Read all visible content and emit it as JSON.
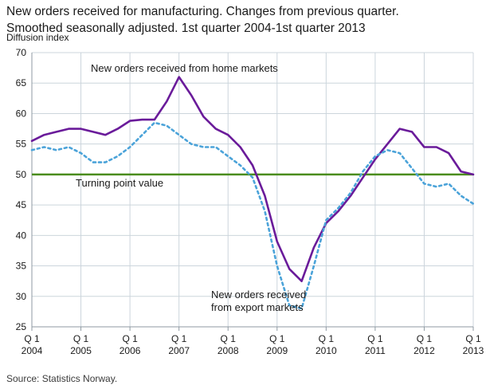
{
  "title": {
    "line1": "New orders received for manufacturing. Changes from previous quarter.",
    "line2": "Smoothed seasonally adjusted. 1st quarter 2004-1st quarter 2013"
  },
  "axis_unit_label": "Diffusion index",
  "source": "Source: Statistics Norway.",
  "annotations": {
    "home_markets": "New orders received from home markets",
    "turning_point": "Turning point value",
    "export_markets_line1": "New orders received",
    "export_markets_line2": "from export markets"
  },
  "colors": {
    "home_series": "#6a1b9a",
    "export_series": "#4ba3d9",
    "turning_line": "#4a8c1c",
    "grid": "#ccd5dc",
    "axis": "#8f9aa3",
    "text": "#1a1a1a"
  },
  "chart_data": {
    "type": "line",
    "title": "New orders received for manufacturing. Changes from previous quarter. Smoothed seasonally adjusted. 1st quarter 2004-1st quarter 2013",
    "ylabel": "Diffusion index",
    "ylim": [
      25,
      70
    ],
    "y_ticks": [
      25,
      30,
      35,
      40,
      45,
      50,
      55,
      60,
      65,
      70
    ],
    "grid": true,
    "turning_point_value": 50,
    "x_quarters_per_tick": 4,
    "x_tick_labels": [
      {
        "q": "Q 1",
        "year": "2004"
      },
      {
        "q": "Q 1",
        "year": "2005"
      },
      {
        "q": "Q 1",
        "year": "2006"
      },
      {
        "q": "Q 1",
        "year": "2007"
      },
      {
        "q": "Q 1",
        "year": "2008"
      },
      {
        "q": "Q 1",
        "year": "2009"
      },
      {
        "q": "Q 1",
        "year": "2010"
      },
      {
        "q": "Q 1",
        "year": "2011"
      },
      {
        "q": "Q 1",
        "year": "2012"
      },
      {
        "q": "Q 1",
        "year": "2013"
      }
    ],
    "series": [
      {
        "name": "New orders received from home markets",
        "color": "#6a1b9a",
        "dash": null,
        "values": [
          55.5,
          56.5,
          57,
          57.5,
          57.5,
          57,
          56.5,
          57.5,
          58.8,
          59,
          59,
          62,
          66,
          63,
          59.5,
          57.5,
          56.5,
          54.5,
          51.5,
          46.5,
          39,
          34.5,
          32.5,
          38,
          42,
          44,
          46.5,
          49.5,
          52.5,
          55,
          57.5,
          57,
          54.5,
          54.5,
          53.5,
          50.5,
          50
        ]
      },
      {
        "name": "New orders received from export markets",
        "color": "#4ba3d9",
        "dash": "3 4",
        "values": [
          54,
          54.5,
          54,
          54.5,
          53.5,
          52,
          52,
          53,
          54.5,
          56.5,
          58.5,
          58,
          56.5,
          55,
          54.5,
          54.5,
          53,
          51.5,
          49.5,
          44,
          35,
          28.5,
          28,
          35,
          42.5,
          44.5,
          47,
          50.5,
          53,
          54,
          53.5,
          51,
          48.5,
          48,
          48.5,
          46.5,
          45.2
        ]
      }
    ]
  }
}
